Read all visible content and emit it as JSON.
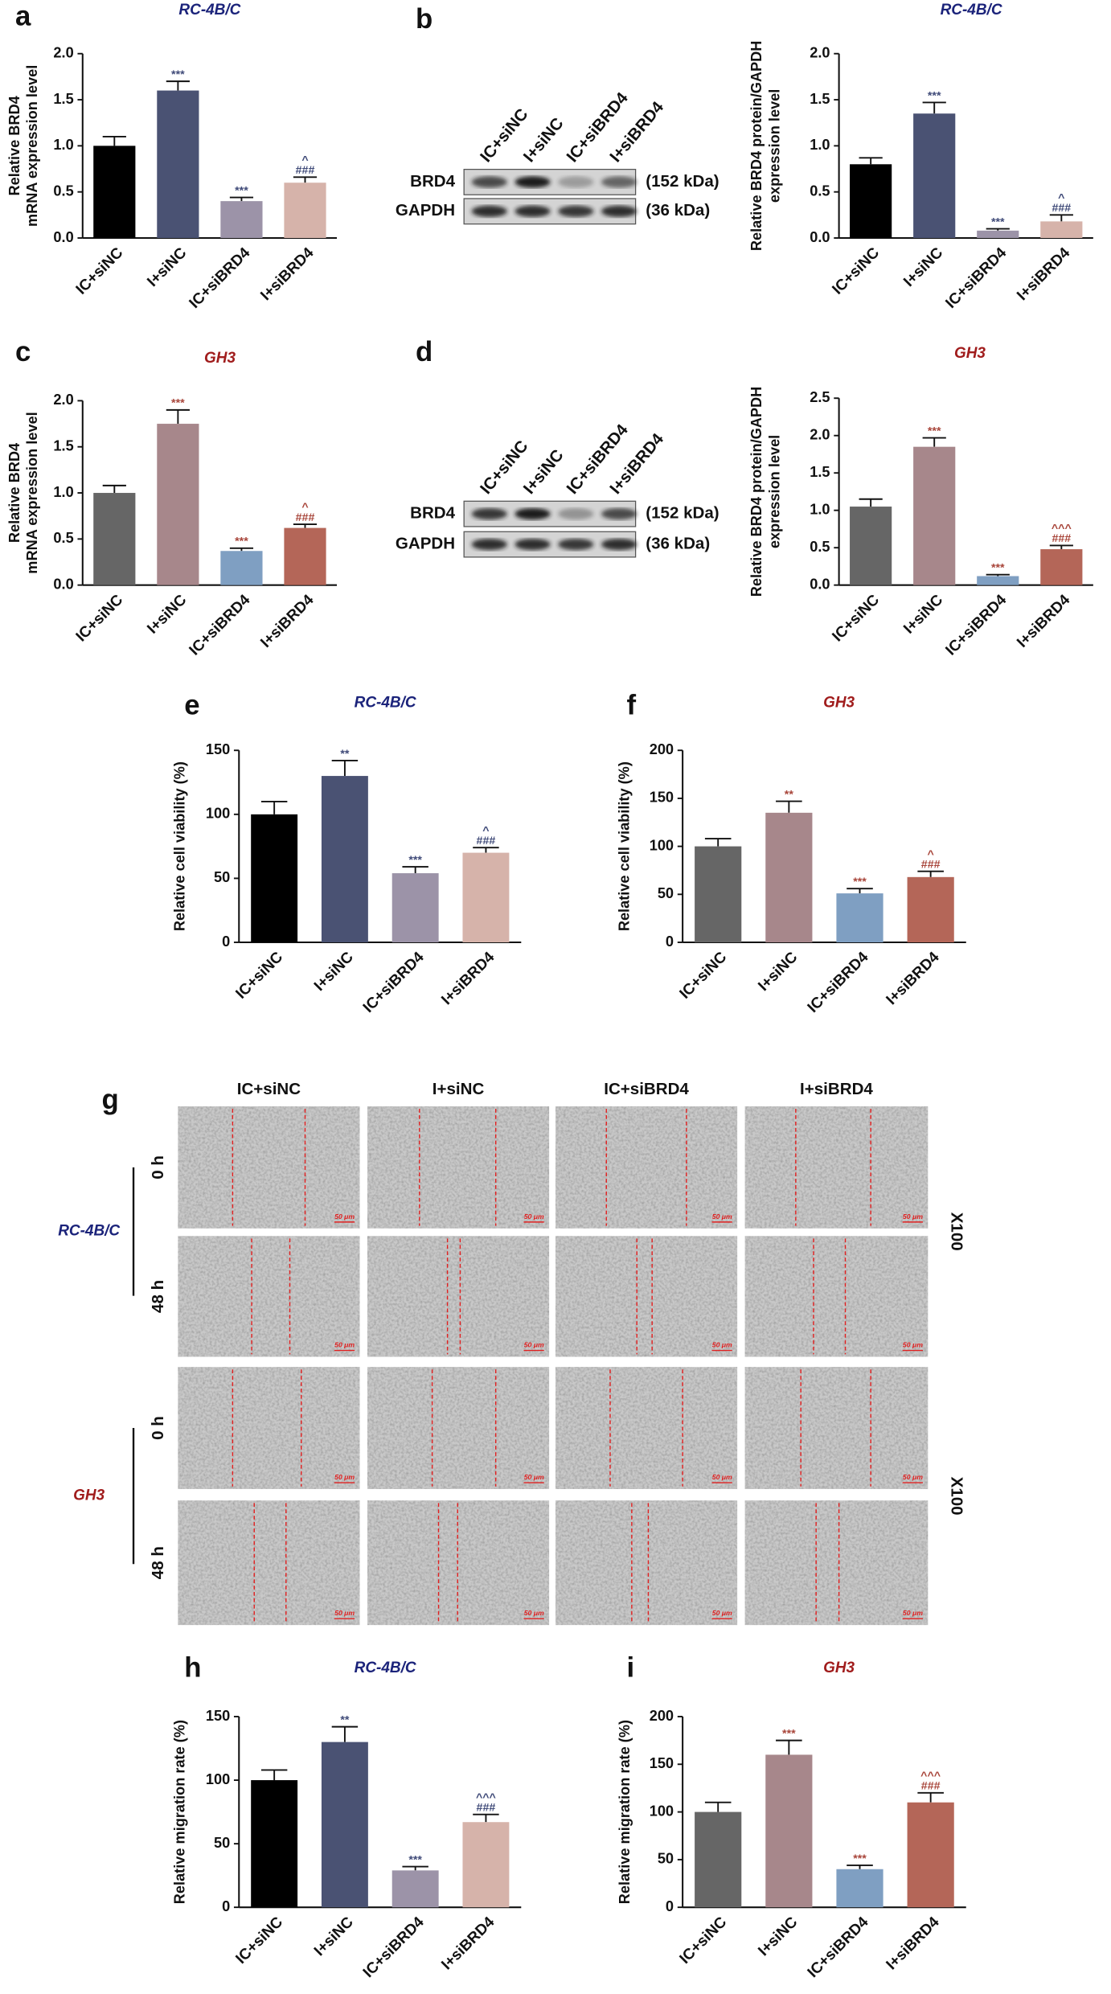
{
  "chart_data": [
    {
      "type": "bar",
      "panel": "a",
      "title": "RC-4B/C",
      "title_color": "#1b237a",
      "annotation_color": "#3f4a78",
      "y_label": [
        "Relative BRD4",
        "mRNA expression  level"
      ],
      "categories": [
        "IC+siNC",
        "I+siNC",
        "IC+siBRD4",
        "I+siBRD4"
      ],
      "values": [
        1.0,
        1.6,
        0.4,
        0.6
      ],
      "errors": [
        0.1,
        0.1,
        0.04,
        0.06
      ],
      "annotations": [
        [],
        [
          "***"
        ],
        [
          "***"
        ],
        [
          "^",
          "###"
        ]
      ],
      "colors": [
        "#000000",
        "#4a5273",
        "#9c93a8",
        "#d6b3aa"
      ],
      "ylim": [
        0,
        2
      ],
      "yticks": [
        {
          "value": 0,
          "label": "0.0"
        },
        0.5,
        {
          "value": 1,
          "label": "1.0"
        },
        1.5,
        {
          "value": 2,
          "label": "2.0"
        }
      ]
    },
    {
      "type": "bar",
      "title": "RC-4B/C",
      "title_color": "#1b237a",
      "annotation_color": "#3f4a78",
      "y_label": [
        "Relative BRD4 protein/GAPDH",
        "expression level"
      ],
      "categories": [
        "IC+siNC",
        "I+siNC",
        "IC+siBRD4",
        "I+siBRD4"
      ],
      "values": [
        0.8,
        1.35,
        0.08,
        0.18
      ],
      "errors": [
        0.07,
        0.12,
        0.02,
        0.07
      ],
      "annotations": [
        [],
        [
          "***"
        ],
        [
          "***"
        ],
        [
          "^",
          "###"
        ]
      ],
      "colors": [
        "#000000",
        "#4a5273",
        "#9c93a8",
        "#d6b3aa"
      ],
      "ylim": [
        0,
        2
      ],
      "yticks": [
        {
          "value": 0,
          "label": "0.0"
        },
        0.5,
        {
          "value": 1,
          "label": "1.0"
        },
        1.5,
        {
          "value": 2,
          "label": "2.0"
        }
      ]
    },
    {
      "type": "bar",
      "panel": "c",
      "title": "GH3",
      "title_color": "#a01c1c",
      "annotation_color": "#a8453a",
      "y_label": [
        "Relative BRD4",
        "mRNA expression  level"
      ],
      "categories": [
        "IC+siNC",
        "I+siNC",
        "IC+siBRD4",
        "I+siBRD4"
      ],
      "values": [
        1.0,
        1.75,
        0.37,
        0.62
      ],
      "errors": [
        0.08,
        0.15,
        0.03,
        0.04
      ],
      "annotations": [
        [],
        [
          "***"
        ],
        [
          "***"
        ],
        [
          "^",
          "###"
        ]
      ],
      "colors": [
        "#666666",
        "#a7878b",
        "#7f9fc2",
        "#b46658"
      ],
      "ylim": [
        0,
        2
      ],
      "yticks": [
        {
          "value": 0,
          "label": "0.0"
        },
        0.5,
        {
          "value": 1,
          "label": "1.0"
        },
        1.5,
        {
          "value": 2,
          "label": "2.0"
        }
      ]
    },
    {
      "type": "bar",
      "title": "GH3",
      "title_color": "#a01c1c",
      "annotation_color": "#a8453a",
      "y_label": [
        "Relative BRD4 protein/GAPDH",
        "expression level"
      ],
      "categories": [
        "IC+siNC",
        "I+siNC",
        "IC+siBRD4",
        "I+siBRD4"
      ],
      "values": [
        1.05,
        1.85,
        0.12,
        0.48
      ],
      "errors": [
        0.1,
        0.12,
        0.02,
        0.05
      ],
      "annotations": [
        [],
        [
          "***"
        ],
        [
          "***"
        ],
        [
          "^^^",
          "###"
        ]
      ],
      "colors": [
        "#666666",
        "#a7878b",
        "#7f9fc2",
        "#b46658"
      ],
      "ylim": [
        0,
        2.5
      ],
      "yticks": [
        {
          "value": 0,
          "label": "0.0"
        },
        0.5,
        {
          "value": 1,
          "label": "1.0"
        },
        1.5,
        {
          "value": 2,
          "label": "2.0"
        },
        2.5
      ]
    },
    {
      "type": "bar",
      "panel": "e",
      "title": "RC-4B/C",
      "title_color": "#1b237a",
      "annotation_color": "#3f4a78",
      "y_label": [
        "Relative cell viability (%)"
      ],
      "categories": [
        "IC+siNC",
        "I+siNC",
        "IC+siBRD4",
        "I+siBRD4"
      ],
      "values": [
        100,
        130,
        54,
        70
      ],
      "errors": [
        10,
        12,
        5,
        4
      ],
      "annotations": [
        [],
        [
          "**"
        ],
        [
          "***"
        ],
        [
          "^",
          "###"
        ]
      ],
      "colors": [
        "#000000",
        "#4a5273",
        "#9c93a8",
        "#d6b3aa"
      ],
      "ylim": [
        0,
        150
      ],
      "yticks": [
        0,
        50,
        100,
        150
      ]
    },
    {
      "type": "bar",
      "panel": "f",
      "title": "GH3",
      "title_color": "#a01c1c",
      "annotation_color": "#a8453a",
      "y_label": [
        "Relative cell viability (%)"
      ],
      "categories": [
        "IC+siNC",
        "I+siNC",
        "IC+siBRD4",
        "I+siBRD4"
      ],
      "values": [
        100,
        135,
        51,
        68
      ],
      "errors": [
        8,
        12,
        5,
        6
      ],
      "annotations": [
        [],
        [
          "**"
        ],
        [
          "***"
        ],
        [
          "^",
          "###"
        ]
      ],
      "colors": [
        "#666666",
        "#a7878b",
        "#7f9fc2",
        "#b46658"
      ],
      "ylim": [
        0,
        200
      ],
      "yticks": [
        0,
        50,
        100,
        150,
        200
      ]
    },
    {
      "type": "bar",
      "panel": "h",
      "title": "RC-4B/C",
      "title_color": "#1b237a",
      "annotation_color": "#3f4a78",
      "y_label": [
        "Relative migration rate (%)"
      ],
      "categories": [
        "IC+siNC",
        "I+siNC",
        "IC+siBRD4",
        "I+siBRD4"
      ],
      "values": [
        100,
        130,
        29,
        67
      ],
      "errors": [
        8,
        12,
        3,
        6
      ],
      "annotations": [
        [],
        [
          "**"
        ],
        [
          "***"
        ],
        [
          "^^^",
          "###"
        ]
      ],
      "colors": [
        "#000000",
        "#4a5273",
        "#9c93a8",
        "#d6b3aa"
      ],
      "ylim": [
        0,
        150
      ],
      "yticks": [
        0,
        50,
        100,
        150
      ]
    },
    {
      "type": "bar",
      "panel": "i",
      "title": "GH3",
      "title_color": "#a01c1c",
      "annotation_color": "#a8453a",
      "y_label": [
        "Relative migration rate (%)"
      ],
      "categories": [
        "IC+siNC",
        "I+siNC",
        "IC+siBRD4",
        "I+siBRD4"
      ],
      "values": [
        100,
        160,
        40,
        110
      ],
      "errors": [
        10,
        15,
        4,
        10
      ],
      "annotations": [
        [],
        [
          "***"
        ],
        [
          "***"
        ],
        [
          "^^^",
          "###"
        ]
      ],
      "colors": [
        "#666666",
        "#a7878b",
        "#7f9fc2",
        "#b46658"
      ],
      "ylim": [
        0,
        200
      ],
      "yticks": [
        0,
        50,
        100,
        150,
        200
      ]
    }
  ],
  "blots": [
    {
      "panel": "b",
      "lanes": [
        "IC+siNC",
        "I+siNC",
        "IC+siBRD4",
        "I+siBRD4"
      ],
      "bands": [
        {
          "protein": "BRD4",
          "size": "(152 kDa)"
        },
        {
          "protein": "GAPDH",
          "size": "(36 kDa)"
        }
      ]
    },
    {
      "panel": "d",
      "lanes": [
        "IC+siNC",
        "I+siNC",
        "IC+siBRD4",
        "I+siBRD4"
      ],
      "bands": [
        {
          "protein": "BRD4",
          "size": "(152 kDa)"
        },
        {
          "protein": "GAPDH",
          "size": "(36 kDa)"
        }
      ]
    }
  ],
  "wound": {
    "panel": "g",
    "columns": [
      "IC+siNC",
      "I+siNC",
      "IC+siBRD4",
      "I+siBRD4"
    ],
    "groups": [
      {
        "cell": "RC-4B/C",
        "cell_color": "#1b237a",
        "times": [
          "0 h",
          "48 h"
        ],
        "magnification": "X100"
      },
      {
        "cell": "GH3",
        "cell_color": "#a01c1c",
        "times": [
          "0 h",
          "48 h"
        ],
        "magnification": "X100"
      }
    ],
    "scale_bar": "50 μm"
  }
}
